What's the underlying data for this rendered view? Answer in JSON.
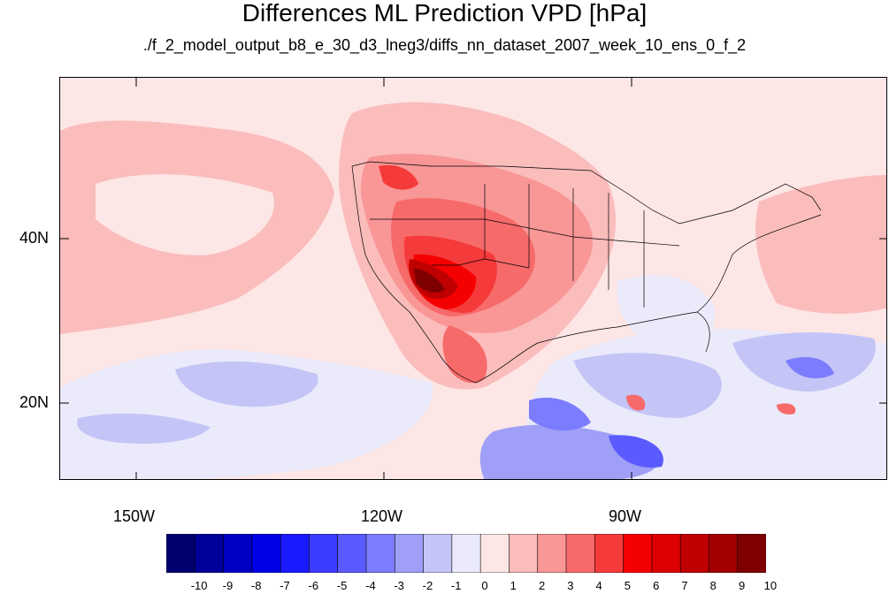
{
  "title": "Differences ML Prediction VPD [hPa]",
  "subtitle": "./f_2_model_output_b8_e_30_d3_lneg3/diffs_nn_dataset_2007_week_10_ens_0_f_2",
  "axes": {
    "lat_ticks": [
      {
        "label": "40N",
        "value": 40
      },
      {
        "label": "20N",
        "value": 20
      }
    ],
    "lon_ticks": [
      {
        "label": "150W",
        "value": -150
      },
      {
        "label": "120W",
        "value": -120
      },
      {
        "label": "90W",
        "value": -90
      }
    ]
  },
  "colorbar": {
    "labels": [
      "-10",
      "-9",
      "-8",
      "-7",
      "-6",
      "-5",
      "-4",
      "-3",
      "-2",
      "-1",
      "0",
      "1",
      "2",
      "3",
      "4",
      "5",
      "6",
      "7",
      "8",
      "9",
      "10"
    ],
    "colors": [
      "#00006e",
      "#00009a",
      "#0000c4",
      "#0000e6",
      "#1a1aff",
      "#3c3cff",
      "#5a5aff",
      "#7c7cff",
      "#9f9ff7",
      "#c4c4f7",
      "#eaeafa",
      "#fde6e6",
      "#fbbcbc",
      "#f99696",
      "#f76a6a",
      "#f43a3a",
      "#f40000",
      "#dc0000",
      "#c00000",
      "#a20000",
      "#7e0000"
    ]
  }
}
